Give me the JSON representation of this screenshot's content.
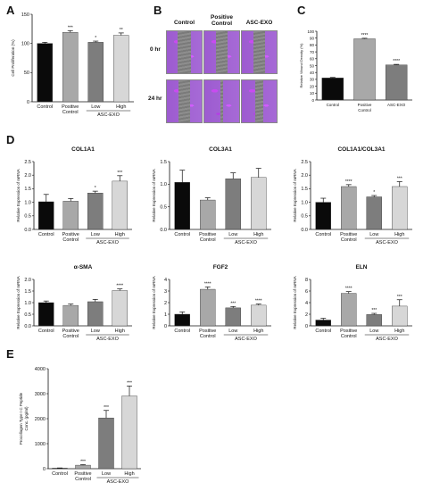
{
  "panel_letters": {
    "a": "A",
    "b": "B",
    "c": "C",
    "d": "D",
    "e": "E"
  },
  "wound_images": {
    "columns": [
      "Control",
      "Positive Control",
      "ASC-EXO"
    ],
    "rows": [
      "0 hr",
      "24 hr"
    ],
    "gap_fraction": [
      [
        0.36,
        0.34,
        0.35
      ],
      [
        0.34,
        0.1,
        0.22
      ]
    ]
  },
  "colors": {
    "control": "#0a0a0a",
    "positive": "#a8a8a8",
    "low": "#7d7d7d",
    "high": "#d7d7d7",
    "wound_tissue": "#a05fd3",
    "wound_gap": "#868686"
  },
  "chart_data": [
    {
      "id": "A",
      "type": "bar",
      "title": "",
      "ylabel": "Cell Proliferation (%)",
      "ylim": [
        0,
        150
      ],
      "yticks": [
        0,
        50,
        100,
        150
      ],
      "categories": [
        "Control",
        "Positive Control",
        "Low",
        "High"
      ],
      "group_label": "ASC-EXO",
      "group_members": [
        2,
        3
      ],
      "values": [
        100,
        119,
        102,
        114
      ],
      "errors": [
        2,
        3,
        2,
        4
      ],
      "significance": [
        "",
        "***",
        "*",
        "**"
      ],
      "font": "small"
    },
    {
      "id": "C",
      "type": "bar",
      "title": "",
      "ylabel": "Relative Wound Density (%)",
      "ylim": [
        0,
        100
      ],
      "yticks": [
        0,
        10,
        20,
        30,
        40,
        50,
        60,
        70,
        80,
        90,
        100
      ],
      "categories": [
        "Control",
        "Positive Control",
        "ASC-EXO"
      ],
      "group_label": "",
      "group_members": [],
      "values": [
        32,
        89,
        51
      ],
      "errors": [
        0.8,
        0.8,
        0.8
      ],
      "significance": [
        "",
        "****",
        "****"
      ],
      "colorKeys": [
        "control",
        "positive",
        "low"
      ],
      "font": "tiny"
    },
    {
      "id": "D1",
      "type": "bar",
      "title": "COL1A1",
      "ylabel": "Relative Expression of mRNA",
      "ylim": [
        0,
        2.5
      ],
      "yticks": [
        0.0,
        0.5,
        1.0,
        1.5,
        2.0,
        2.5
      ],
      "tickDecimals": 1,
      "categories": [
        "Control",
        "Positive Control",
        "Low",
        "High"
      ],
      "group_label": "ASC-EXO",
      "group_members": [
        2,
        3
      ],
      "values": [
        1.02,
        1.04,
        1.34,
        1.78
      ],
      "errors": [
        0.27,
        0.1,
        0.07,
        0.2
      ],
      "significance": [
        "",
        "",
        "*",
        "***"
      ],
      "font": "small"
    },
    {
      "id": "D2",
      "type": "bar",
      "title": "COL3A1",
      "ylabel": "Relative Expression of mRNA",
      "ylim": [
        0,
        1.5
      ],
      "yticks": [
        0.0,
        0.5,
        1.0,
        1.5
      ],
      "tickDecimals": 1,
      "categories": [
        "Control",
        "Positive Control",
        "Low",
        "High"
      ],
      "group_label": "ASC-EXO",
      "group_members": [
        2,
        3
      ],
      "values": [
        1.04,
        0.65,
        1.12,
        1.15
      ],
      "errors": [
        0.27,
        0.05,
        0.13,
        0.2
      ],
      "significance": [
        "",
        "",
        "",
        ""
      ],
      "font": "small"
    },
    {
      "id": "D3",
      "type": "bar",
      "title": "COL1A1/COL3A1",
      "ylabel": "Relative Expression of mRNA",
      "ylim": [
        0,
        2.5
      ],
      "yticks": [
        0.0,
        0.5,
        1.0,
        1.5,
        2.0,
        2.5
      ],
      "tickDecimals": 1,
      "categories": [
        "Control",
        "Positive Control",
        "Low",
        "High"
      ],
      "group_label": "ASC-EXO",
      "group_members": [
        2,
        3
      ],
      "values": [
        1.0,
        1.58,
        1.2,
        1.58
      ],
      "errors": [
        0.15,
        0.07,
        0.05,
        0.18
      ],
      "significance": [
        "",
        "****",
        "*",
        "***"
      ],
      "font": "small"
    },
    {
      "id": "D4",
      "type": "bar",
      "title": "α-SMA",
      "ylabel": "Relative Expression of mRNA",
      "ylim": [
        0,
        2.0
      ],
      "yticks": [
        0.0,
        0.5,
        1.0,
        1.5,
        2.0
      ],
      "tickDecimals": 1,
      "categories": [
        "Control",
        "Positive Control",
        "Low",
        "High"
      ],
      "group_label": "ASC-EXO",
      "group_members": [
        2,
        3
      ],
      "values": [
        1.0,
        0.88,
        1.04,
        1.52
      ],
      "errors": [
        0.07,
        0.06,
        0.1,
        0.07
      ],
      "significance": [
        "",
        "",
        "",
        "****"
      ],
      "font": "small"
    },
    {
      "id": "D5",
      "type": "bar",
      "title": "FGF2",
      "ylabel": "Relative Expression of mRNA",
      "ylim": [
        0,
        4
      ],
      "yticks": [
        0,
        1,
        2,
        3,
        4
      ],
      "tickDecimals": 0,
      "categories": [
        "Control",
        "Positive Control",
        "Low",
        "High"
      ],
      "group_label": "ASC-EXO",
      "group_members": [
        2,
        3
      ],
      "values": [
        1.0,
        3.15,
        1.55,
        1.78
      ],
      "errors": [
        0.2,
        0.2,
        0.12,
        0.1
      ],
      "significance": [
        "",
        "****",
        "***",
        "****"
      ],
      "font": "small"
    },
    {
      "id": "D6",
      "type": "bar",
      "title": "ELN",
      "ylabel": "Relative Expression of mRNA",
      "ylim": [
        0,
        8
      ],
      "yticks": [
        0,
        2,
        4,
        6,
        8
      ],
      "tickDecimals": 0,
      "categories": [
        "Control",
        "Positive Control",
        "Low",
        "High"
      ],
      "group_label": "ASC-EXO",
      "group_members": [
        2,
        3
      ],
      "values": [
        1.0,
        5.6,
        1.95,
        3.4
      ],
      "errors": [
        0.3,
        0.3,
        0.2,
        1.1
      ],
      "significance": [
        "",
        "****",
        "***",
        "***"
      ],
      "font": "small"
    },
    {
      "id": "E",
      "type": "bar",
      "title": "",
      "ylabel": "Procollagen Type I C Peptide Conc. (pg/ml)",
      "ylim": [
        0,
        4000
      ],
      "yticks": [
        0,
        1000,
        2000,
        3000,
        4000
      ],
      "tickDecimals": 0,
      "categories": [
        "Control",
        "Positive Control",
        "Low",
        "High"
      ],
      "group_label": "ASC-EXO",
      "group_members": [
        2,
        3
      ],
      "values": [
        20,
        140,
        2030,
        2910
      ],
      "errors": [
        10,
        20,
        300,
        400
      ],
      "significance": [
        "",
        "***",
        "***",
        "***"
      ],
      "font": "small"
    }
  ]
}
